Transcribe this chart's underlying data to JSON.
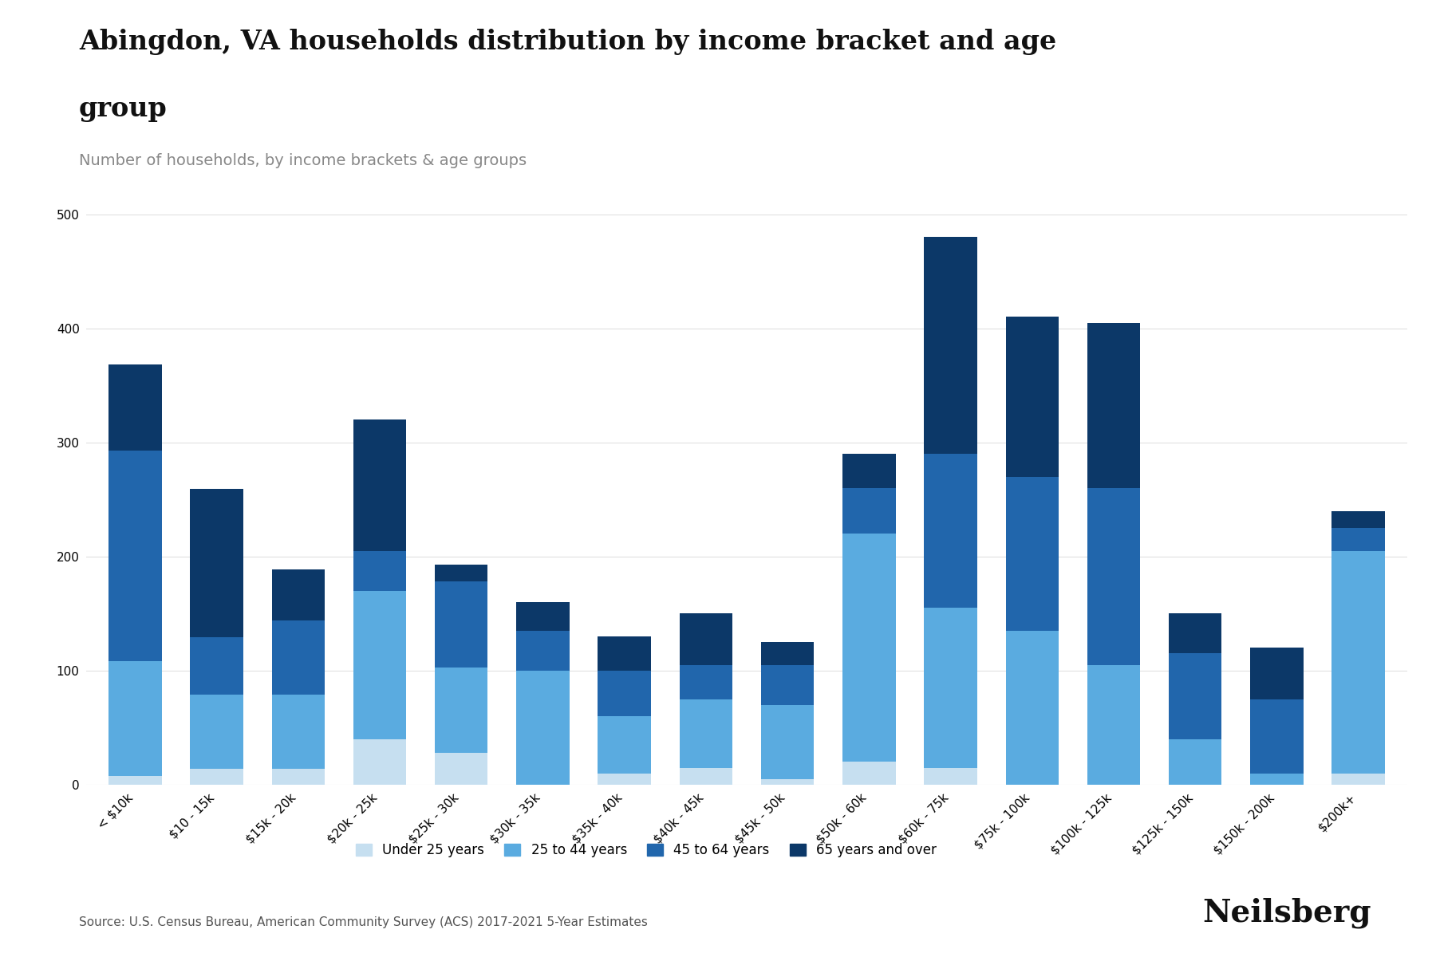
{
  "title_line1": "Abingdon, VA households distribution by income bracket and age",
  "title_line2": "group",
  "subtitle": "Number of households, by income brackets & age groups",
  "source": "Source: U.S. Census Bureau, American Community Survey (ACS) 2017-2021 5-Year Estimates",
  "categories": [
    "< $10k",
    "$10 - 15k",
    "$15k - 20k",
    "$20k - 25k",
    "$25k - 30k",
    "$30k - 35k",
    "$35k - 40k",
    "$40k - 45k",
    "$45k - 50k",
    "$50k - 60k",
    "$60k - 75k",
    "$75k - 100k",
    "$100k - 125k",
    "$125k - 150k",
    "$150k - 200k",
    "$200k+"
  ],
  "age_groups": [
    "Under 25 years",
    "25 to 44 years",
    "45 to 64 years",
    "65 years and over"
  ],
  "colors": [
    "#c6dff0",
    "#5aabe0",
    "#2166ac",
    "#0c3868"
  ],
  "data": {
    "Under 25 years": [
      8,
      14,
      14,
      40,
      28,
      0,
      10,
      15,
      5,
      20,
      15,
      0,
      0,
      0,
      0,
      10
    ],
    "25 to 44 years": [
      100,
      65,
      65,
      130,
      75,
      100,
      50,
      60,
      65,
      200,
      140,
      135,
      105,
      40,
      10,
      195
    ],
    "45 to 64 years": [
      185,
      50,
      65,
      35,
      75,
      35,
      40,
      30,
      35,
      40,
      135,
      135,
      155,
      75,
      65,
      20
    ],
    "65 years and over": [
      75,
      130,
      45,
      115,
      15,
      25,
      30,
      45,
      20,
      30,
      190,
      140,
      145,
      35,
      45,
      15
    ]
  },
  "ylim": [
    0,
    520
  ],
  "yticks": [
    0,
    100,
    200,
    300,
    400,
    500
  ],
  "background_color": "#ffffff",
  "grid_color": "#e0e0e0",
  "title_fontsize": 24,
  "subtitle_fontsize": 14,
  "tick_fontsize": 11,
  "legend_fontsize": 12,
  "source_fontsize": 11,
  "brand": "Neilsberg"
}
